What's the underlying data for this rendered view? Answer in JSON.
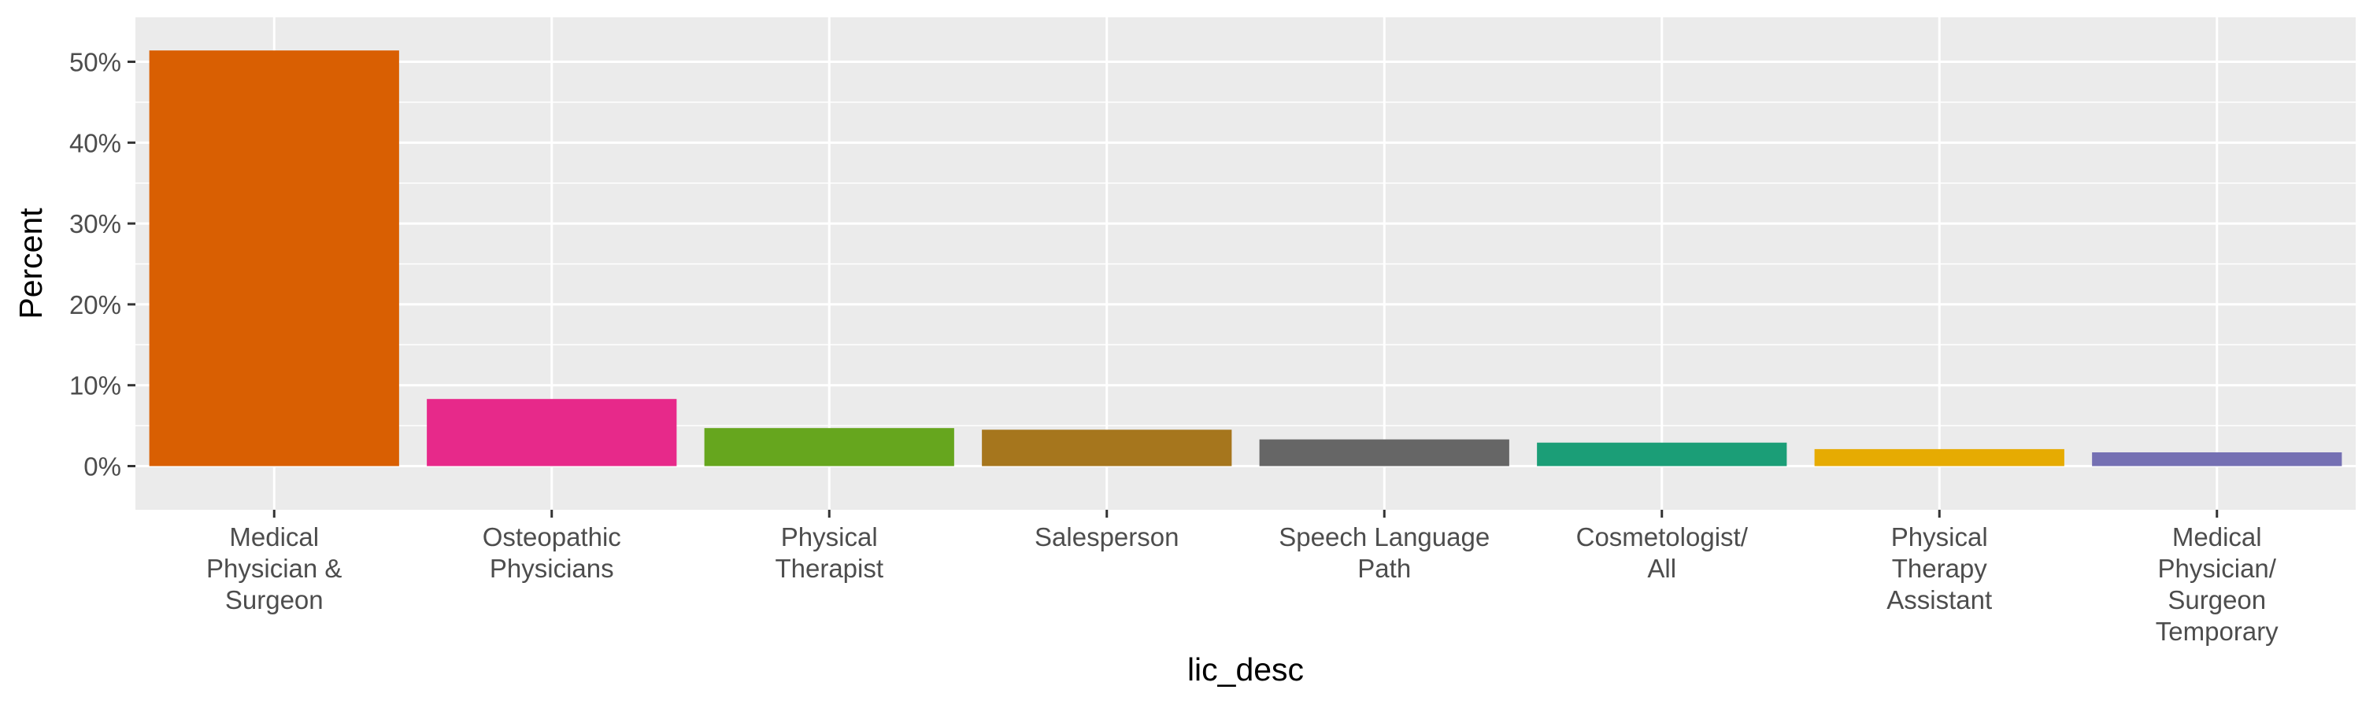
{
  "chart_data": {
    "type": "bar",
    "title": "",
    "xlabel": "lic_desc",
    "ylabel": "Percent",
    "ylim": [
      -0.054,
      0.555
    ],
    "yticks": [
      0,
      0.1,
      0.2,
      0.3,
      0.4,
      0.5
    ],
    "ytick_labels": [
      "0%",
      "10%",
      "20%",
      "30%",
      "40%",
      "50%"
    ],
    "grid": true,
    "legend": "none",
    "categories": [
      [
        "Medical",
        "Physician &",
        "Surgeon"
      ],
      [
        "Osteopathic",
        "Physicians"
      ],
      [
        "Physical",
        "Therapist"
      ],
      [
        "Salesperson"
      ],
      [
        "Speech Language",
        "Path"
      ],
      [
        "Cosmetologist/",
        "All"
      ],
      [
        "Physical",
        "Therapy",
        "Assistant"
      ],
      [
        "Medical",
        "Physician/",
        "Surgeon",
        "Temporary"
      ]
    ],
    "values": [
      0.514,
      0.083,
      0.047,
      0.045,
      0.033,
      0.029,
      0.021,
      0.017
    ],
    "colors": [
      "#d95f02",
      "#e7298a",
      "#66a61e",
      "#a6761d",
      "#666666",
      "#1b9e77",
      "#e6ab02",
      "#7570b3"
    ]
  }
}
